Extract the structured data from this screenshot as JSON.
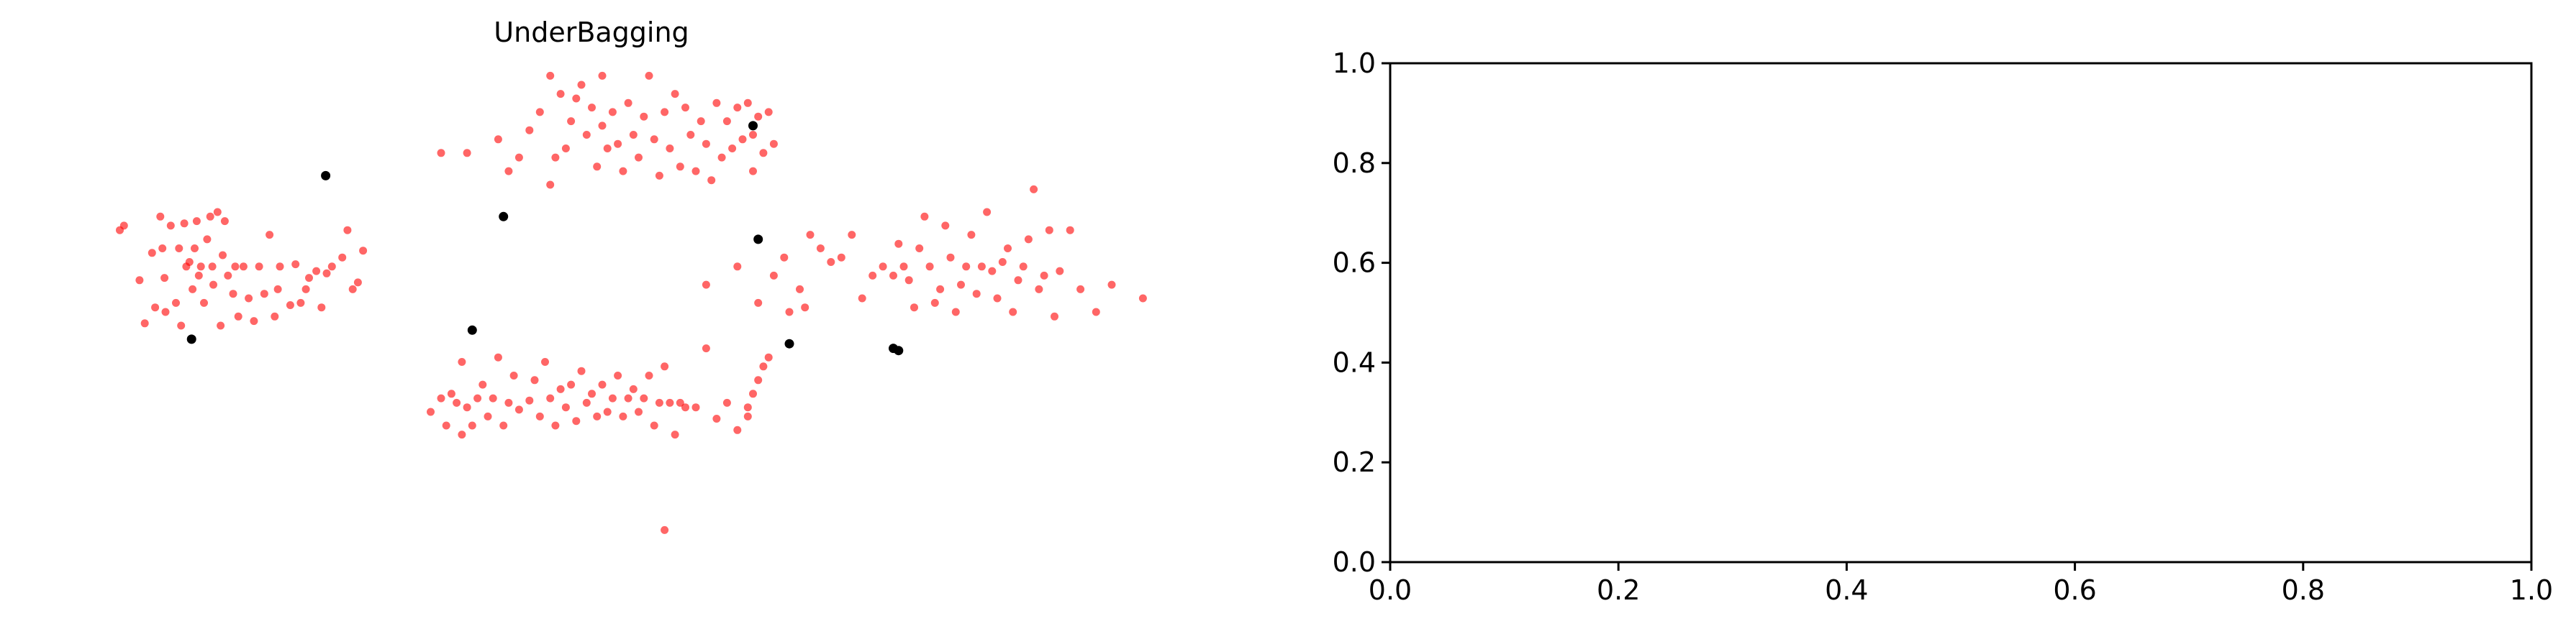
{
  "chart_data": [
    {
      "type": "scatter",
      "title": "UnderBagging",
      "axes_visible": false,
      "xlabel": "",
      "ylabel": "",
      "xlim": [
        0,
        1
      ],
      "ylim": [
        0,
        1
      ],
      "series": [
        {
          "color": "#ff0000",
          "opacity": 0.6,
          "points": [
            [
              0.046,
              0.68
            ],
            [
              0.05,
              0.69
            ],
            [
              0.065,
              0.57
            ],
            [
              0.07,
              0.475
            ],
            [
              0.077,
              0.63
            ],
            [
              0.08,
              0.51
            ],
            [
              0.085,
              0.71
            ],
            [
              0.087,
              0.64
            ],
            [
              0.089,
              0.575
            ],
            [
              0.09,
              0.5
            ],
            [
              0.095,
              0.69
            ],
            [
              0.1,
              0.52
            ],
            [
              0.103,
              0.64
            ],
            [
              0.105,
              0.47
            ],
            [
              0.108,
              0.695
            ],
            [
              0.11,
              0.6
            ],
            [
              0.113,
              0.61
            ],
            [
              0.116,
              0.55
            ],
            [
              0.118,
              0.64
            ],
            [
              0.12,
              0.7
            ],
            [
              0.122,
              0.58
            ],
            [
              0.124,
              0.6
            ],
            [
              0.127,
              0.52
            ],
            [
              0.13,
              0.66
            ],
            [
              0.133,
              0.71
            ],
            [
              0.135,
              0.6
            ],
            [
              0.136,
              0.56
            ],
            [
              0.14,
              0.72
            ],
            [
              0.143,
              0.47
            ],
            [
              0.145,
              0.625
            ],
            [
              0.147,
              0.7
            ],
            [
              0.15,
              0.58
            ],
            [
              0.155,
              0.54
            ],
            [
              0.157,
              0.6
            ],
            [
              0.16,
              0.49
            ],
            [
              0.165,
              0.6
            ],
            [
              0.17,
              0.53
            ],
            [
              0.175,
              0.48
            ],
            [
              0.18,
              0.6
            ],
            [
              0.185,
              0.54
            ],
            [
              0.19,
              0.67
            ],
            [
              0.195,
              0.49
            ],
            [
              0.198,
              0.55
            ],
            [
              0.2,
              0.6
            ],
            [
              0.21,
              0.515
            ],
            [
              0.215,
              0.605
            ],
            [
              0.22,
              0.52
            ],
            [
              0.225,
              0.55
            ],
            [
              0.228,
              0.575
            ],
            [
              0.235,
              0.59
            ],
            [
              0.24,
              0.51
            ],
            [
              0.245,
              0.585
            ],
            [
              0.25,
              0.6
            ],
            [
              0.26,
              0.62
            ],
            [
              0.265,
              0.68
            ],
            [
              0.27,
              0.55
            ],
            [
              0.275,
              0.565
            ],
            [
              0.28,
              0.635
            ],
            [
              0.36,
              0.25
            ],
            [
              0.365,
              0.32
            ],
            [
              0.37,
              0.3
            ],
            [
              0.375,
              0.39
            ],
            [
              0.38,
              0.29
            ],
            [
              0.385,
              0.25
            ],
            [
              0.39,
              0.31
            ],
            [
              0.395,
              0.34
            ],
            [
              0.4,
              0.27
            ],
            [
              0.405,
              0.31
            ],
            [
              0.41,
              0.4
            ],
            [
              0.415,
              0.25
            ],
            [
              0.42,
              0.3
            ],
            [
              0.425,
              0.36
            ],
            [
              0.43,
              0.285
            ],
            [
              0.44,
              0.305
            ],
            [
              0.445,
              0.35
            ],
            [
              0.45,
              0.27
            ],
            [
              0.455,
              0.39
            ],
            [
              0.46,
              0.31
            ],
            [
              0.465,
              0.25
            ],
            [
              0.47,
              0.33
            ],
            [
              0.475,
              0.29
            ],
            [
              0.48,
              0.34
            ],
            [
              0.485,
              0.26
            ],
            [
              0.49,
              0.37
            ],
            [
              0.495,
              0.3
            ],
            [
              0.5,
              0.32
            ],
            [
              0.505,
              0.27
            ],
            [
              0.51,
              0.34
            ],
            [
              0.515,
              0.28
            ],
            [
              0.52,
              0.31
            ],
            [
              0.525,
              0.36
            ],
            [
              0.53,
              0.27
            ],
            [
              0.535,
              0.31
            ],
            [
              0.54,
              0.33
            ],
            [
              0.545,
              0.28
            ],
            [
              0.55,
              0.31
            ],
            [
              0.555,
              0.36
            ],
            [
              0.56,
              0.25
            ],
            [
              0.565,
              0.3
            ],
            [
              0.57,
              0.38
            ],
            [
              0.575,
              0.3
            ],
            [
              0.58,
              0.23
            ],
            [
              0.585,
              0.3
            ],
            [
              0.59,
              0.29
            ],
            [
              0.6,
              0.29
            ],
            [
              0.61,
              0.42
            ],
            [
              0.62,
              0.265
            ],
            [
              0.63,
              0.3
            ],
            [
              0.64,
              0.24
            ],
            [
              0.65,
              0.29
            ],
            [
              0.655,
              0.32
            ],
            [
              0.66,
              0.35
            ],
            [
              0.665,
              0.38
            ],
            [
              0.67,
              0.4
            ],
            [
              0.65,
              0.27
            ],
            [
              0.375,
              0.23
            ],
            [
              0.57,
              0.02
            ],
            [
              0.345,
              0.28
            ],
            [
              0.355,
              0.31
            ],
            [
              0.355,
              0.85
            ],
            [
              0.38,
              0.85
            ],
            [
              0.41,
              0.88
            ],
            [
              0.42,
              0.81
            ],
            [
              0.43,
              0.84
            ],
            [
              0.44,
              0.9
            ],
            [
              0.45,
              0.94
            ],
            [
              0.46,
              0.78
            ],
            [
              0.465,
              0.84
            ],
            [
              0.47,
              0.98
            ],
            [
              0.475,
              0.86
            ],
            [
              0.48,
              0.92
            ],
            [
              0.485,
              0.97
            ],
            [
              0.49,
              1.0
            ],
            [
              0.495,
              0.89
            ],
            [
              0.5,
              0.95
            ],
            [
              0.505,
              0.82
            ],
            [
              0.51,
              0.91
            ],
            [
              0.515,
              0.86
            ],
            [
              0.52,
              0.94
            ],
            [
              0.525,
              0.87
            ],
            [
              0.53,
              0.81
            ],
            [
              0.535,
              0.96
            ],
            [
              0.54,
              0.89
            ],
            [
              0.545,
              0.84
            ],
            [
              0.55,
              0.93
            ],
            [
              0.555,
              1.02
            ],
            [
              0.56,
              0.88
            ],
            [
              0.565,
              0.8
            ],
            [
              0.57,
              0.94
            ],
            [
              0.575,
              0.86
            ],
            [
              0.58,
              0.98
            ],
            [
              0.585,
              0.82
            ],
            [
              0.59,
              0.95
            ],
            [
              0.595,
              0.89
            ],
            [
              0.6,
              0.81
            ],
            [
              0.605,
              0.92
            ],
            [
              0.61,
              0.87
            ],
            [
              0.615,
              0.79
            ],
            [
              0.62,
              0.96
            ],
            [
              0.625,
              0.84
            ],
            [
              0.63,
              0.92
            ],
            [
              0.635,
              0.86
            ],
            [
              0.64,
              0.95
            ],
            [
              0.645,
              0.88
            ],
            [
              0.65,
              0.96
            ],
            [
              0.655,
              0.89
            ],
            [
              0.66,
              0.93
            ],
            [
              0.665,
              0.85
            ],
            [
              0.67,
              0.94
            ],
            [
              0.675,
              0.87
            ],
            [
              0.655,
              0.81
            ],
            [
              0.46,
              1.02
            ],
            [
              0.51,
              1.02
            ],
            [
              0.66,
              0.52
            ],
            [
              0.675,
              0.58
            ],
            [
              0.685,
              0.62
            ],
            [
              0.69,
              0.5
            ],
            [
              0.7,
              0.55
            ],
            [
              0.705,
              0.51
            ],
            [
              0.71,
              0.67
            ],
            [
              0.72,
              0.64
            ],
            [
              0.73,
              0.61
            ],
            [
              0.74,
              0.62
            ],
            [
              0.75,
              0.67
            ],
            [
              0.76,
              0.53
            ],
            [
              0.77,
              0.58
            ],
            [
              0.78,
              0.6
            ],
            [
              0.79,
              0.58
            ],
            [
              0.795,
              0.65
            ],
            [
              0.8,
              0.6
            ],
            [
              0.805,
              0.57
            ],
            [
              0.81,
              0.51
            ],
            [
              0.815,
              0.64
            ],
            [
              0.82,
              0.71
            ],
            [
              0.825,
              0.6
            ],
            [
              0.83,
              0.52
            ],
            [
              0.835,
              0.55
            ],
            [
              0.84,
              0.69
            ],
            [
              0.845,
              0.62
            ],
            [
              0.85,
              0.5
            ],
            [
              0.855,
              0.56
            ],
            [
              0.86,
              0.6
            ],
            [
              0.865,
              0.67
            ],
            [
              0.87,
              0.54
            ],
            [
              0.875,
              0.6
            ],
            [
              0.88,
              0.72
            ],
            [
              0.885,
              0.59
            ],
            [
              0.89,
              0.53
            ],
            [
              0.895,
              0.61
            ],
            [
              0.9,
              0.64
            ],
            [
              0.905,
              0.5
            ],
            [
              0.91,
              0.57
            ],
            [
              0.915,
              0.6
            ],
            [
              0.92,
              0.66
            ],
            [
              0.925,
              0.77
            ],
            [
              0.93,
              0.55
            ],
            [
              0.935,
              0.58
            ],
            [
              0.94,
              0.68
            ],
            [
              0.945,
              0.49
            ],
            [
              0.95,
              0.59
            ],
            [
              0.96,
              0.68
            ],
            [
              0.97,
              0.55
            ],
            [
              0.985,
              0.5
            ],
            [
              1.0,
              0.56
            ],
            [
              1.03,
              0.53
            ],
            [
              0.64,
              0.6
            ],
            [
              0.61,
              0.56
            ]
          ]
        },
        {
          "color": "#000000",
          "opacity": 1.0,
          "points": [
            [
              0.244,
              0.8
            ],
            [
              0.115,
              0.44
            ],
            [
              0.415,
              0.71
            ],
            [
              0.385,
              0.46
            ],
            [
              0.655,
              0.91
            ],
            [
              0.66,
              0.66
            ],
            [
              0.69,
              0.43
            ],
            [
              0.79,
              0.42
            ],
            [
              0.795,
              0.415
            ]
          ]
        }
      ]
    },
    {
      "type": "scatter",
      "title": "",
      "axes_visible": true,
      "xlabel": "",
      "ylabel": "",
      "xlim": [
        0.0,
        1.0
      ],
      "ylim": [
        0.0,
        1.0
      ],
      "xticks": [
        "0.0",
        "0.2",
        "0.4",
        "0.6",
        "0.8",
        "1.0"
      ],
      "yticks": [
        "0.0",
        "0.2",
        "0.4",
        "0.6",
        "0.8",
        "1.0"
      ],
      "series": []
    }
  ]
}
